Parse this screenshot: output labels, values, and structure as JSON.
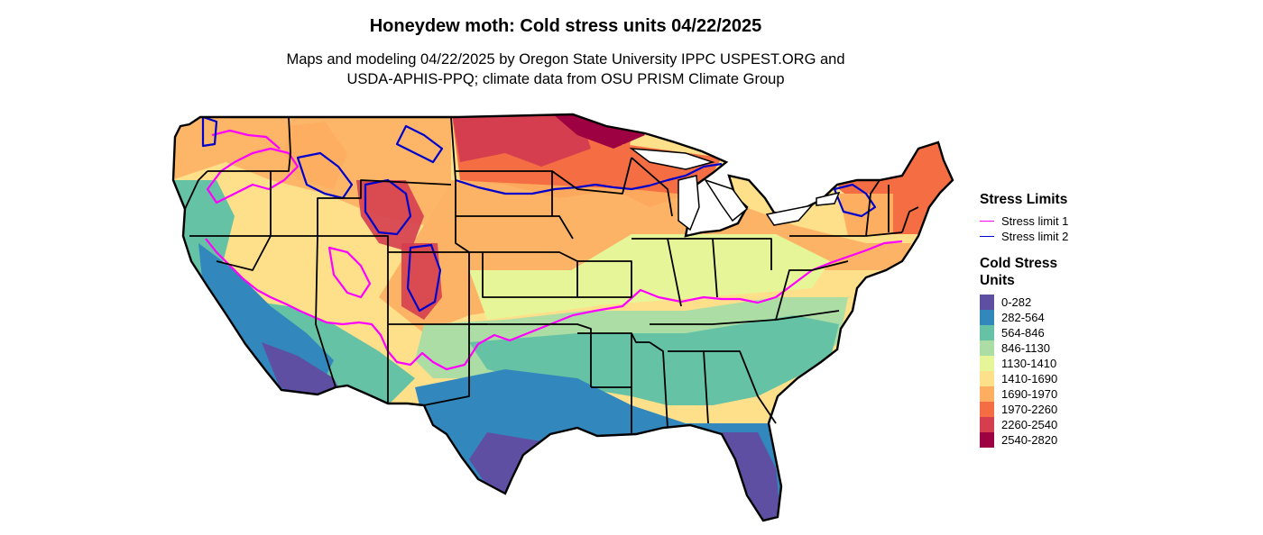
{
  "title": "Honeydew moth: Cold stress units 04/22/2025",
  "subtitle_lines": [
    "Maps and modeling 04/22/2025 by Oregon State University IPPC USPEST.ORG and",
    "USDA-APHIS-PPQ; climate data from OSU PRISM Climate Group"
  ],
  "legend": {
    "stress_title": "Stress Limits",
    "stress_items": [
      {
        "label": "Stress limit 1",
        "color": "#ff00ff"
      },
      {
        "label": "Stress limit 2",
        "color": "#0000cc"
      }
    ],
    "units_title_lines": [
      "Cold Stress",
      "Units"
    ],
    "unit_items": [
      {
        "label": "0-282",
        "color": "#5e4fa2"
      },
      {
        "label": "282-564",
        "color": "#3288bd"
      },
      {
        "label": "564-846",
        "color": "#66c2a5"
      },
      {
        "label": "846-1130",
        "color": "#abdda4"
      },
      {
        "label": "1130-1410",
        "color": "#e6f598"
      },
      {
        "label": "1410-1690",
        "color": "#fee08b"
      },
      {
        "label": "1690-1970",
        "color": "#fdae61"
      },
      {
        "label": "1970-2260",
        "color": "#f46d43"
      },
      {
        "label": "2260-2540",
        "color": "#d53e4f"
      },
      {
        "label": "2540-2820",
        "color": "#9e0142"
      }
    ]
  }
}
